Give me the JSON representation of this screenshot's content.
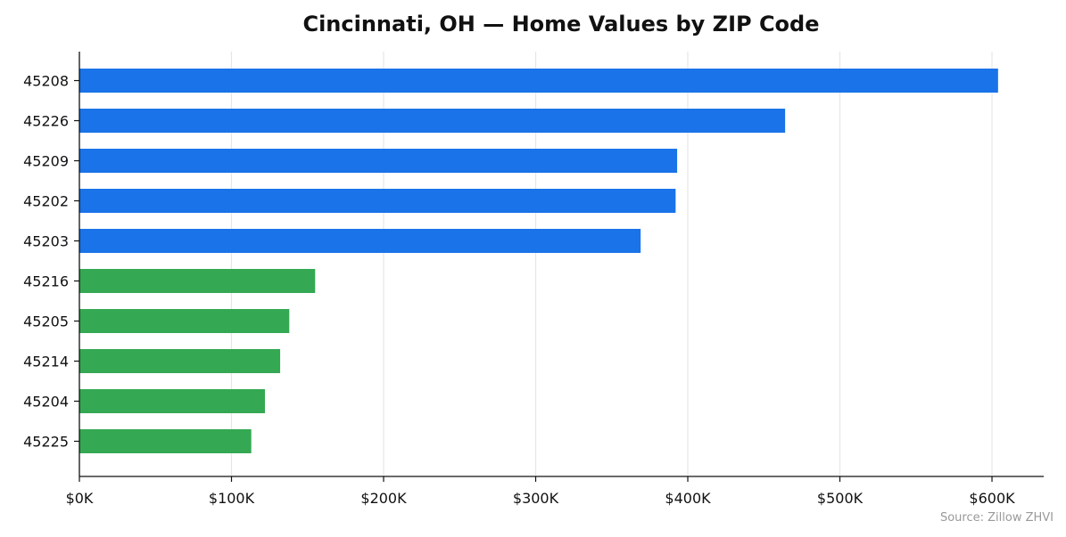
{
  "chart_data": {
    "type": "bar",
    "orientation": "horizontal",
    "title": "Cincinnati, OH — Home Values by ZIP Code",
    "xlabel": "",
    "ylabel": "",
    "categories": [
      "45208",
      "45226",
      "45209",
      "45202",
      "45203",
      "45216",
      "45205",
      "45214",
      "45204",
      "45225"
    ],
    "values": [
      604000,
      464000,
      393000,
      392000,
      369000,
      155000,
      138000,
      132000,
      122000,
      113000
    ],
    "bar_colors": [
      "#1a73e8",
      "#1a73e8",
      "#1a73e8",
      "#1a73e8",
      "#1a73e8",
      "#34a853",
      "#34a853",
      "#34a853",
      "#34a853",
      "#34a853"
    ],
    "xlim": [
      0,
      634000
    ],
    "x_ticks": [
      0,
      100000,
      200000,
      300000,
      400000,
      500000,
      600000
    ],
    "x_tick_labels": [
      "$0K",
      "$100K",
      "$200K",
      "$300K",
      "$400K",
      "$500K",
      "$600K"
    ],
    "grid": "vertical",
    "legend": "none",
    "source": "Source: Zillow ZHVI"
  }
}
